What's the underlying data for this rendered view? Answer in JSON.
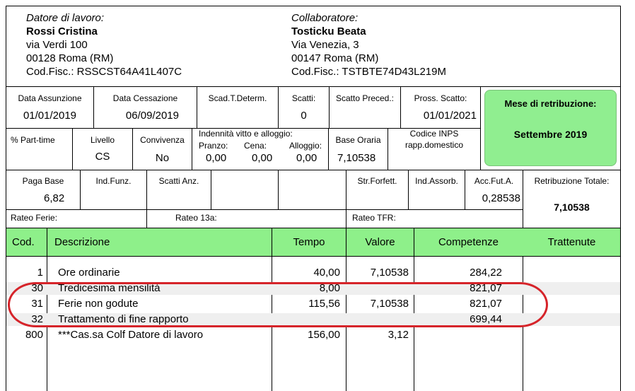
{
  "employer": {
    "label": "Datore di lavoro:",
    "name": "Rossi Cristina",
    "address": "via Verdi 100",
    "city": "00128 Roma (RM)",
    "taxcode": "Cod.Fisc.: RSSCST64A41L407C"
  },
  "collaborator": {
    "label": "Collaboratore:",
    "name": "Tosticku Beata",
    "address": "Via Venezia, 3",
    "city": "00147 Roma (RM)",
    "taxcode": "Cod.Fisc.: TSTBTE74D43L219M"
  },
  "row1": {
    "data_assunzione_label": "Data Assunzione",
    "data_assunzione": "01/01/2019",
    "data_cessazione_label": "Data Cessazione",
    "data_cessazione": "06/09/2019",
    "scad_label": "Scad.T.Determ.",
    "scatti_label": "Scatti:",
    "scatti": "0",
    "scatto_preced_label": "Scatto Preced.:",
    "pross_scatto_label": "Pross. Scatto:",
    "pross_scatto": "01/01/2021"
  },
  "row2": {
    "part_time_label": "% Part-time",
    "livello_label": "Livello",
    "livello": "CS",
    "convivenza_label": "Convivenza",
    "convivenza": "No",
    "indennita_label": "Indennità vitto e alloggio:",
    "pranzo_label": "Pranzo:",
    "pranzo": "0,00",
    "cena_label": "Cena:",
    "cena": "0,00",
    "alloggio_label": "Alloggio:",
    "alloggio": "0,00",
    "base_oraria_label": "Base Oraria",
    "base_oraria": "7,10538",
    "codice_inps_label1": "Codice INPS",
    "codice_inps_label2": "rapp.domestico"
  },
  "mese": {
    "label": "Mese di retribuzione:",
    "value": "Settembre 2019"
  },
  "row3": {
    "paga_base_label": "Paga Base",
    "paga_base": "6,82",
    "ind_funz_label": "Ind.Funz.",
    "scatti_anz_label": "Scatti Anz.",
    "str_forfett_label": "Str.Forfett.",
    "ind_assorb_label": "Ind.Assorb.",
    "acc_fut_label": "Acc.Fut.A.",
    "acc_fut": "0,28538",
    "retrib_tot_label": "Retribuzione Totale:",
    "retrib_tot": "7,10538"
  },
  "rates": {
    "ferie": "Rateo Ferie:",
    "tredicesima": "Rateo 13a:",
    "tfr": "Rateo TFR:"
  },
  "table": {
    "headers": {
      "cod": "Cod.",
      "desc": "Descrizione",
      "tempo": "Tempo",
      "valore": "Valore",
      "competenze": "Competenze",
      "trattenute": "Trattenute"
    },
    "rows": [
      {
        "cod": "1",
        "desc": "Ore ordinarie",
        "tempo": "40,00",
        "valore": "7,10538",
        "competenze": "284,22"
      },
      {
        "cod": "30",
        "desc": "Tredicesima mensilità",
        "tempo": "8,00",
        "valore": "",
        "competenze": "821,07"
      },
      {
        "cod": "31",
        "desc": "Ferie non godute",
        "tempo": "115,56",
        "valore": "7,10538",
        "competenze": "821,07"
      },
      {
        "cod": "32",
        "desc": "Trattamento di fine rapporto",
        "tempo": "",
        "valore": "",
        "competenze": "699,44"
      },
      {
        "cod": "800",
        "desc": "***Cas.sa Colf Datore di lavoro",
        "tempo": "156,00",
        "valore": "3,12",
        "competenze": ""
      }
    ]
  },
  "colors": {
    "green_header": "#8ef08a",
    "badge_green": "#90ee90",
    "highlight_red": "#d6242a"
  }
}
